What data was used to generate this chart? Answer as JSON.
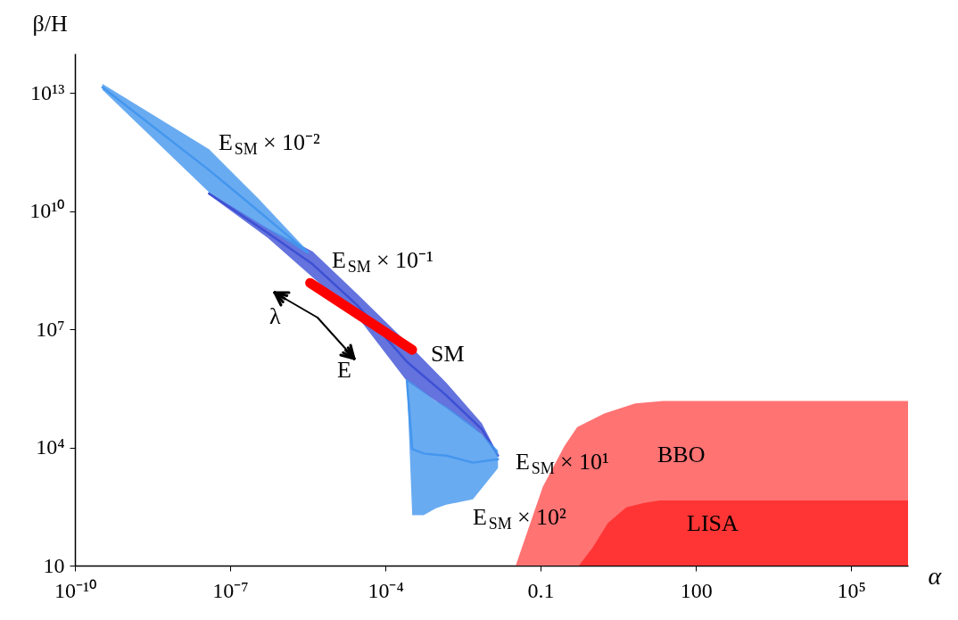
{
  "chart_data": {
    "type": "area",
    "xlabel": "α",
    "ylabel": "β/H",
    "log": "xy",
    "xlim": [
      1e-10,
      1260000.0
    ],
    "ylim": [
      10,
      100000000000000.0
    ],
    "xticks": [
      {
        "value": 1e-10,
        "label": "10⁻¹⁰"
      },
      {
        "value": 1e-07,
        "label": "10⁻⁷"
      },
      {
        "value": 0.0001,
        "label": "10⁻⁴"
      },
      0.1,
      100,
      {
        "value": 100000.0,
        "label": "10⁵"
      }
    ],
    "yticks": [
      10,
      {
        "value": 10000.0,
        "label": "10⁴"
      },
      {
        "value": 10000000.0,
        "label": "10⁷"
      },
      {
        "value": 10000000000.0,
        "label": "10¹⁰"
      },
      {
        "value": 10000000000000.0,
        "label": "10¹³"
      }
    ],
    "series": [
      {
        "type": "line",
        "color": "#3d50d4",
        "x": [
          3.9e-08,
          5.3e-07,
          3.9e-06,
          2.8e-05,
          0.00026,
          0.0015,
          0.0073,
          0.015
        ],
        "values": [
          28000000000.0,
          2800000000.0,
          450000000.0,
          42000000.0,
          1500000.0,
          210000.0,
          29000.0,
          6200.0
        ],
        "lower": [
          26000000000.0,
          2100000000.0,
          210000000.0,
          22000000.0,
          480000.0,
          100000.0,
          21000.0,
          5900.0
        ],
        "upper": [
          30000000000.0,
          3700000000.0,
          950000000.0,
          81000000.0,
          4600000.0,
          440000.0,
          41000.0,
          6600.0
        ]
      },
      {
        "type": "line",
        "color": "#4496ee",
        "x": [
          3.4e-10,
          3.9e-08,
          3.6e-07,
          3.2e-06
        ],
        "values": [
          14000000000000.0,
          110000000000.0,
          9800000000.0,
          880000000.0
        ],
        "lower": [
          12000000000000.0,
          30000000000.0,
          4800000000.0,
          810000000.0
        ],
        "upper": [
          17000000000000.0,
          370000000000.0,
          20000000000.0,
          950000000.0
        ]
      },
      {
        "type": "line",
        "color": "#4496ee",
        "x": [
          0.00026,
          0.00033,
          0.00055,
          0.00093,
          0.0015,
          0.0049,
          0.015
        ],
        "values": [
          500000.0,
          9100.0,
          7000.0,
          6500.0,
          6200.0,
          4100.0,
          5000.0
        ],
        "lower": [
          480000.0,
          190,
          190,
          280,
          350,
          480,
          3000.0
        ],
        "upper": [
          530000.0,
          440000.0,
          260000.0,
          150000.0,
          110000.0,
          35000.0,
          8500.0
        ]
      },
      {
        "type": "line",
        "color": "#ff0000",
        "x": [
          3.5e-06,
          0.00033
        ],
        "values": [
          150000000.0,
          3000000.0
        ]
      },
      {
        "color": "#ff7373",
        "x": [
          0.033,
          0.11,
          0.29,
          0.51,
          1.7,
          6.7,
          23,
          1260000.0
        ],
        "values": [
          10,
          1000.0,
          11000.0,
          33000.0,
          73000.0,
          130000.0,
          150000.0,
          150000.0
        ]
      },
      {
        "color": "#ff3535",
        "x": [
          0.55,
          1,
          2.0,
          4.5,
          10,
          20,
          1260000.0
        ],
        "values": [
          10,
          28,
          120,
          300,
          390,
          450,
          450
        ]
      }
    ],
    "annotations": [
      "E$_{SM}$ × 10⁻²",
      "E$_{SM}$ × 10⁻¹",
      "SM",
      "E$_{SM}$ × 10¹",
      "E$_{SM}$ × 10²",
      "BBO",
      "LISA",
      "λ",
      "E"
    ]
  }
}
